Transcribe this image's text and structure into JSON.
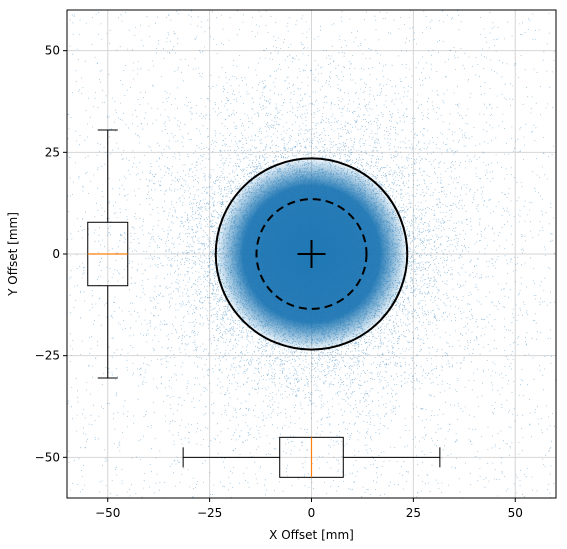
{
  "chart_data": {
    "type": "scatter",
    "title": "",
    "xlabel": "X Offset [mm]",
    "ylabel": "Y Offset [mm]",
    "xlim": [
      -60,
      60
    ],
    "ylim": [
      -60,
      60
    ],
    "xticks": [
      -50,
      -25,
      0,
      25,
      50
    ],
    "yticks": [
      -50,
      -25,
      0,
      25,
      50
    ],
    "xtick_labels": [
      "−50",
      "−25",
      "0",
      "25",
      "50"
    ],
    "ytick_labels": [
      "−50",
      "−25",
      "0",
      "25",
      "50"
    ],
    "grid": true,
    "point_color": "#1f77b4",
    "scatter_description": "dense cloud of offsets centred near (0, 0)",
    "center_marker": [
      0,
      0
    ],
    "circles": [
      {
        "radius": 23.5,
        "style": "solid",
        "color": "#000000"
      },
      {
        "radius": 13.5,
        "style": "dashed",
        "color": "#000000"
      }
    ],
    "x_boxplot": {
      "orientation": "horizontal",
      "position_y": -50,
      "whisker_low": -31.5,
      "q1": -7.8,
      "median": 0,
      "q3": 7.8,
      "whisker_high": 31.5,
      "median_color": "#ff7f0e"
    },
    "y_boxplot": {
      "orientation": "vertical",
      "position_x": -50,
      "whisker_low": -30.5,
      "q1": -7.8,
      "median": 0,
      "q3": 7.8,
      "whisker_high": 30.5,
      "median_color": "#ff7f0e"
    }
  }
}
